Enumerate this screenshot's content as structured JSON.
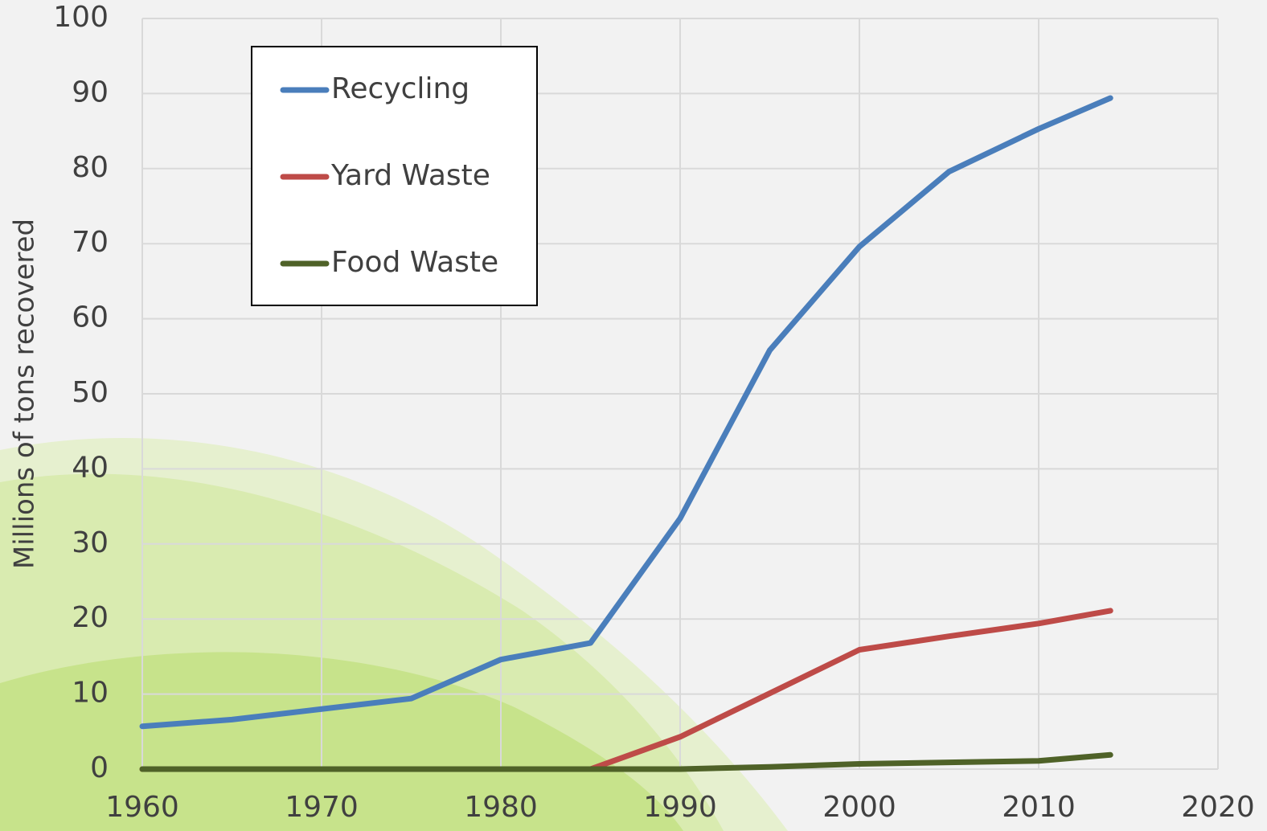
{
  "chart_data": {
    "type": "line",
    "y_label": "Millions of tons recovered",
    "x": [
      1960,
      1965,
      1970,
      1975,
      1980,
      1985,
      1990,
      1995,
      2000,
      2005,
      2010,
      2014
    ],
    "series": [
      {
        "name": "Recycling",
        "color": "#4a7ebb",
        "values": [
          5.7,
          6.6,
          8.0,
          9.4,
          14.6,
          16.8,
          33.4,
          55.8,
          69.6,
          79.6,
          85.3,
          89.4
        ]
      },
      {
        "name": "Yard Waste",
        "color": "#be4b48",
        "values": [
          0,
          0,
          0,
          0,
          0,
          0,
          4.3,
          10.1,
          15.9,
          17.7,
          19.4,
          21.1
        ]
      },
      {
        "name": "Food Waste",
        "color": "#4f6228",
        "values": [
          0,
          0,
          0,
          0,
          0,
          0,
          0,
          0.3,
          0.7,
          0.9,
          1.1,
          1.9
        ]
      }
    ],
    "xlim": [
      1960,
      2020
    ],
    "xticks": [
      1960,
      1970,
      1980,
      1990,
      2000,
      2010,
      2020
    ],
    "ylim": [
      0,
      100
    ],
    "yticks": [
      0,
      10,
      20,
      30,
      40,
      50,
      60,
      70,
      80,
      90,
      100
    ],
    "grid": true,
    "legend": "top-left"
  }
}
